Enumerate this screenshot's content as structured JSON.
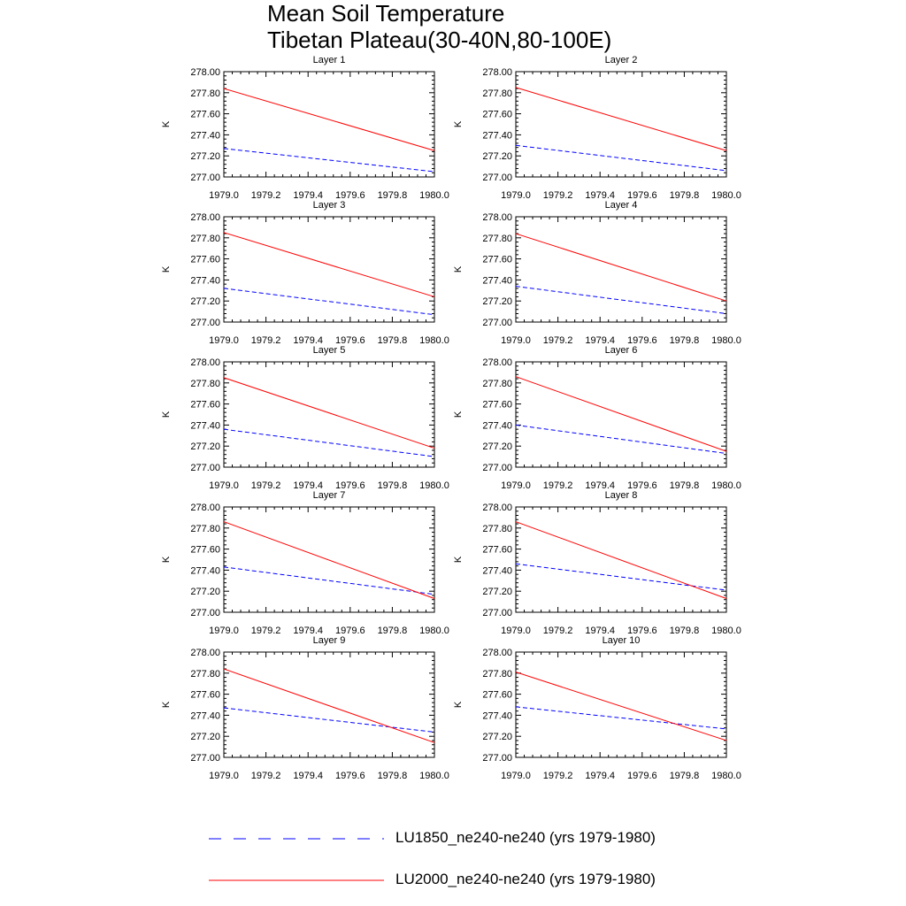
{
  "title_lines": [
    "Mean Soil Temperature",
    "Tibetan Plateau(30-40N,80-100E)"
  ],
  "legend": [
    {
      "label": "LU1850_ne240-ne240 (yrs 1979-1980)",
      "color": "#0000ff",
      "dash": true
    },
    {
      "label": "LU2000_ne240-ne240 (yrs 1979-1980)",
      "color": "#ff0000",
      "dash": false
    }
  ],
  "chart_data": {
    "type": "line",
    "xlim": [
      1979.0,
      1980.0
    ],
    "ylim": [
      277.0,
      278.0
    ],
    "xticks": [
      "1979.0",
      "1979.2",
      "1979.4",
      "1979.6",
      "1979.8",
      "1980.0"
    ],
    "yticks": [
      "277.00",
      "277.20",
      "277.40",
      "277.60",
      "277.80",
      "278.00"
    ],
    "ylabel": "K",
    "x": [
      1979.0,
      1980.0
    ],
    "panels": [
      {
        "title": "Layer 1",
        "series": [
          {
            "values": [
              277.27,
              277.05
            ]
          },
          {
            "values": [
              277.84,
              277.25
            ]
          }
        ]
      },
      {
        "title": "Layer 2",
        "series": [
          {
            "values": [
              277.3,
              277.06
            ]
          },
          {
            "values": [
              277.85,
              277.25
            ]
          }
        ]
      },
      {
        "title": "Layer 3",
        "series": [
          {
            "values": [
              277.32,
              277.07
            ]
          },
          {
            "values": [
              277.85,
              277.24
            ]
          }
        ]
      },
      {
        "title": "Layer 4",
        "series": [
          {
            "values": [
              277.34,
              277.08
            ]
          },
          {
            "values": [
              277.84,
              277.2
            ]
          }
        ]
      },
      {
        "title": "Layer 5",
        "series": [
          {
            "values": [
              277.36,
              277.1
            ]
          },
          {
            "values": [
              277.85,
              277.18
            ]
          }
        ]
      },
      {
        "title": "Layer 6",
        "series": [
          {
            "values": [
              277.4,
              277.13
            ]
          },
          {
            "values": [
              277.86,
              277.15
            ]
          }
        ]
      },
      {
        "title": "Layer 7",
        "series": [
          {
            "values": [
              277.43,
              277.17
            ]
          },
          {
            "values": [
              277.86,
              277.13
            ]
          }
        ]
      },
      {
        "title": "Layer 8",
        "series": [
          {
            "values": [
              277.46,
              277.21
            ]
          },
          {
            "values": [
              277.86,
              277.13
            ]
          }
        ]
      },
      {
        "title": "Layer 9",
        "series": [
          {
            "values": [
              277.47,
              277.24
            ]
          },
          {
            "values": [
              277.84,
              277.14
            ]
          }
        ]
      },
      {
        "title": "Layer 10",
        "series": [
          {
            "values": [
              277.48,
              277.27
            ]
          },
          {
            "values": [
              277.81,
              277.16
            ]
          }
        ]
      }
    ]
  }
}
